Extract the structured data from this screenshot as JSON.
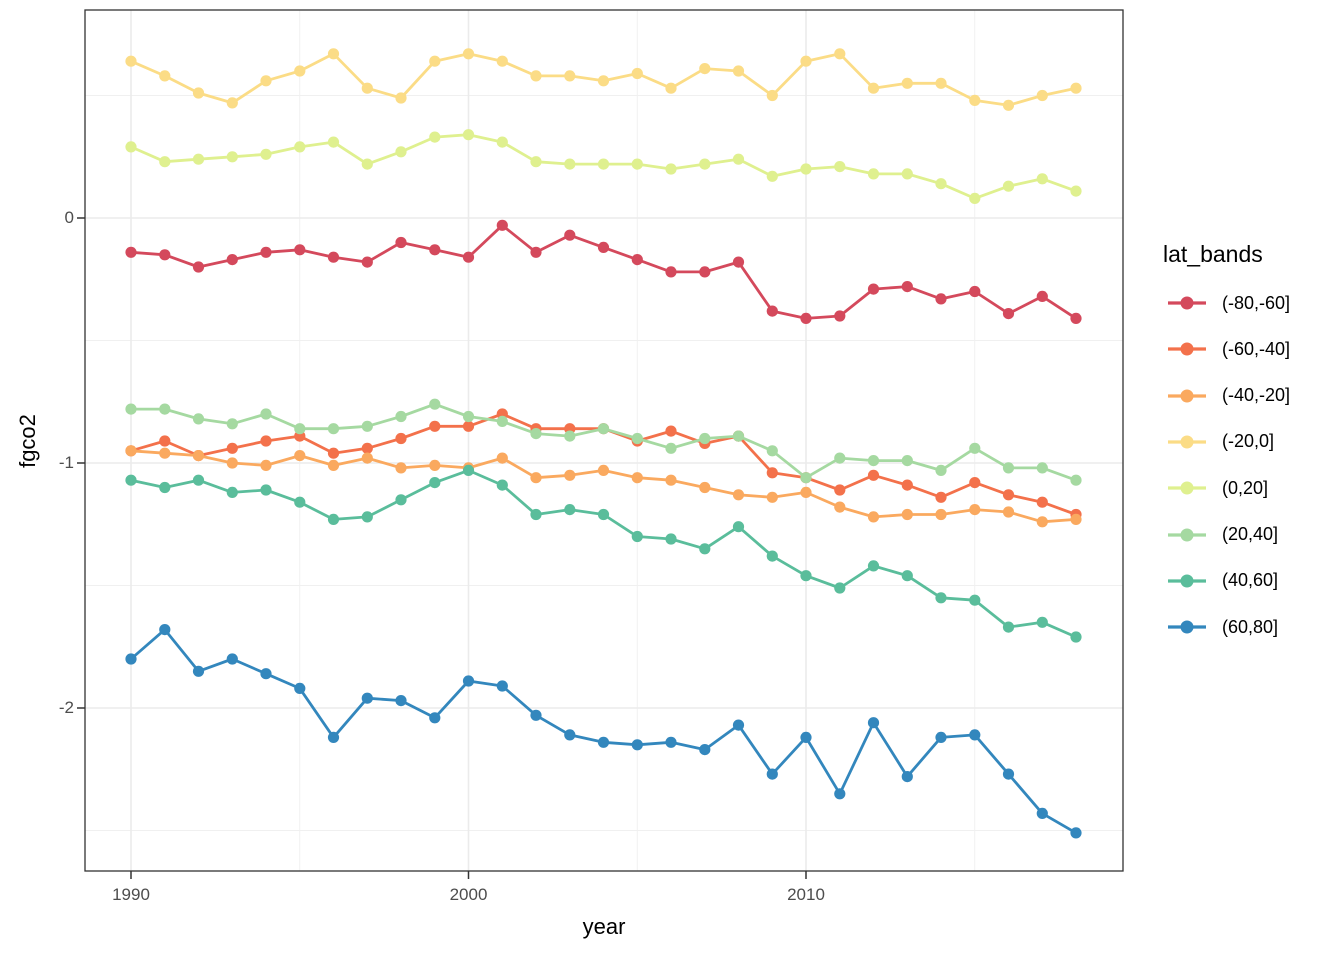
{
  "chart_data": {
    "type": "line",
    "title": "",
    "xlabel": "year",
    "ylabel": "fgco2",
    "legend": {
      "title": "lat_bands",
      "position": "right"
    },
    "grid": true,
    "marker": "circle",
    "xlim": [
      1988.6,
      2019.4
    ],
    "ylim": [
      -2.67,
      0.85
    ],
    "x_ticks": [
      {
        "label": "1990",
        "value": 1990
      },
      {
        "label": "2000",
        "value": 2000
      },
      {
        "label": "2010",
        "value": 2010
      }
    ],
    "y_ticks": [
      {
        "label": "0",
        "value": 0
      },
      {
        "label": "-1",
        "value": -1
      },
      {
        "label": "-2",
        "value": -2
      }
    ],
    "x_minor": [
      1995,
      2005,
      2015
    ],
    "y_minor": [
      0.5,
      -0.5,
      -1.5,
      -2.5
    ],
    "colors": {
      "grid_major": "#EBEBEB",
      "grid_minor": "#F0F0F0",
      "panel_border": "#333333",
      "axis_text": "#4D4D4D",
      "text": "#000000"
    },
    "x": [
      1990,
      1991,
      1992,
      1993,
      1994,
      1995,
      1996,
      1997,
      1998,
      1999,
      2000,
      2001,
      2002,
      2003,
      2004,
      2005,
      2006,
      2007,
      2008,
      2009,
      2010,
      2011,
      2012,
      2013,
      2014,
      2015,
      2016,
      2017,
      2018
    ],
    "series": [
      {
        "name": "(-80,-60]",
        "color": "#D4495C",
        "values": [
          -0.14,
          -0.15,
          -0.2,
          -0.17,
          -0.14,
          -0.13,
          -0.16,
          -0.18,
          -0.1,
          -0.13,
          -0.16,
          -0.03,
          -0.14,
          -0.07,
          -0.12,
          -0.17,
          -0.22,
          -0.22,
          -0.18,
          -0.38,
          -0.41,
          -0.4,
          -0.29,
          -0.28,
          -0.33,
          -0.3,
          -0.39,
          -0.32,
          -0.41
        ]
      },
      {
        "name": "(-60,-40]",
        "color": "#F3714B",
        "values": [
          -0.95,
          -0.91,
          -0.97,
          -0.94,
          -0.91,
          -0.89,
          -0.96,
          -0.94,
          -0.9,
          -0.85,
          -0.85,
          -0.8,
          -0.86,
          -0.86,
          -0.86,
          -0.91,
          -0.87,
          -0.92,
          -0.89,
          -1.04,
          -1.06,
          -1.11,
          -1.05,
          -1.09,
          -1.14,
          -1.08,
          -1.13,
          -1.16,
          -1.21
        ]
      },
      {
        "name": "(-40,-20]",
        "color": "#FAA95F",
        "values": [
          -0.95,
          -0.96,
          -0.97,
          -1.0,
          -1.01,
          -0.97,
          -1.01,
          -0.98,
          -1.02,
          -1.01,
          -1.02,
          -0.98,
          -1.06,
          -1.05,
          -1.03,
          -1.06,
          -1.07,
          -1.1,
          -1.13,
          -1.14,
          -1.12,
          -1.18,
          -1.22,
          -1.21,
          -1.21,
          -1.19,
          -1.2,
          -1.24,
          -1.23
        ]
      },
      {
        "name": "(-20,0]",
        "color": "#FBDC86",
        "values": [
          0.64,
          0.58,
          0.51,
          0.47,
          0.56,
          0.6,
          0.67,
          0.53,
          0.49,
          0.64,
          0.67,
          0.64,
          0.58,
          0.58,
          0.56,
          0.59,
          0.53,
          0.61,
          0.6,
          0.5,
          0.64,
          0.67,
          0.53,
          0.55,
          0.55,
          0.48,
          0.46,
          0.5,
          0.53
        ]
      },
      {
        "name": "(0,20]",
        "color": "#DFF08F",
        "values": [
          0.29,
          0.23,
          0.24,
          0.25,
          0.26,
          0.29,
          0.31,
          0.22,
          0.27,
          0.33,
          0.34,
          0.31,
          0.23,
          0.22,
          0.22,
          0.22,
          0.2,
          0.22,
          0.24,
          0.17,
          0.2,
          0.21,
          0.18,
          0.18,
          0.14,
          0.08,
          0.13,
          0.16,
          0.11
        ]
      },
      {
        "name": "(20,40]",
        "color": "#A5D9A1",
        "values": [
          -0.78,
          -0.78,
          -0.82,
          -0.84,
          -0.8,
          -0.86,
          -0.86,
          -0.85,
          -0.81,
          -0.76,
          -0.81,
          -0.83,
          -0.88,
          -0.89,
          -0.86,
          -0.9,
          -0.94,
          -0.9,
          -0.89,
          -0.95,
          -1.06,
          -0.98,
          -0.99,
          -0.99,
          -1.03,
          -0.94,
          -1.02,
          -1.02,
          -1.07
        ]
      },
      {
        "name": "(40,60]",
        "color": "#5ABD9B",
        "values": [
          -1.07,
          -1.1,
          -1.07,
          -1.12,
          -1.11,
          -1.16,
          -1.23,
          -1.22,
          -1.15,
          -1.08,
          -1.03,
          -1.09,
          -1.21,
          -1.19,
          -1.21,
          -1.3,
          -1.31,
          -1.35,
          -1.26,
          -1.38,
          -1.46,
          -1.51,
          -1.42,
          -1.46,
          -1.55,
          -1.56,
          -1.67,
          -1.65,
          -1.71
        ]
      },
      {
        "name": "(60,80]",
        "color": "#3387BD",
        "values": [
          -1.8,
          -1.68,
          -1.85,
          -1.8,
          -1.86,
          -1.92,
          -2.12,
          -1.96,
          -1.97,
          -2.04,
          -1.89,
          -1.91,
          -2.03,
          -2.11,
          -2.14,
          -2.15,
          -2.14,
          -2.17,
          -2.07,
          -2.27,
          -2.12,
          -2.35,
          -2.06,
          -2.28,
          -2.12,
          -2.11,
          -2.27,
          -2.43,
          -2.51
        ]
      }
    ]
  }
}
